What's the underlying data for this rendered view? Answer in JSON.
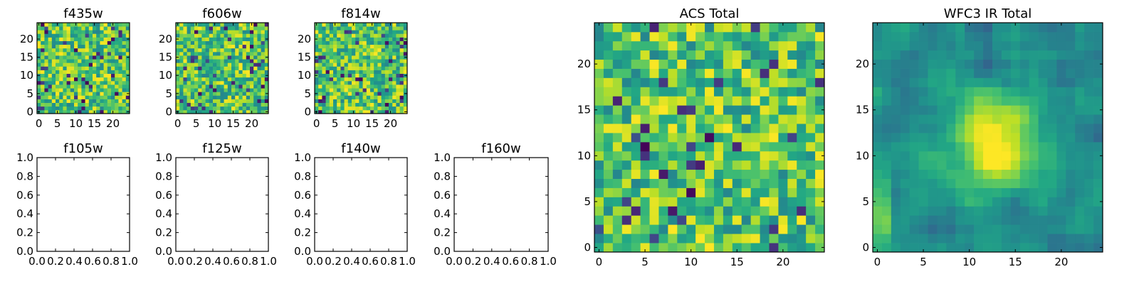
{
  "chart_data": [
    {
      "type": "heatmap",
      "title": "f435w",
      "xlim": [
        -0.5,
        24.5
      ],
      "ylim": [
        -0.5,
        24.5
      ],
      "x_ticks": [
        0,
        5,
        10,
        15,
        20
      ],
      "y_ticks": [
        0,
        5,
        10,
        15,
        20
      ],
      "grid_size": [
        25,
        25
      ],
      "colormap": "viridis",
      "seed": 11
    },
    {
      "type": "heatmap",
      "title": "f606w",
      "xlim": [
        -0.5,
        24.5
      ],
      "ylim": [
        -0.5,
        24.5
      ],
      "x_ticks": [
        0,
        5,
        10,
        15,
        20
      ],
      "y_ticks": [
        0,
        5,
        10,
        15,
        20
      ],
      "grid_size": [
        25,
        25
      ],
      "colormap": "viridis",
      "seed": 23
    },
    {
      "type": "heatmap",
      "title": "f814w",
      "xlim": [
        -0.5,
        24.5
      ],
      "ylim": [
        -0.5,
        24.5
      ],
      "x_ticks": [
        0,
        5,
        10,
        15,
        20
      ],
      "y_ticks": [
        0,
        5,
        10,
        15,
        20
      ],
      "grid_size": [
        25,
        25
      ],
      "colormap": "viridis",
      "seed": 37
    },
    {
      "type": "line",
      "title": "f105w",
      "xlim": [
        0,
        1
      ],
      "ylim": [
        0,
        1
      ],
      "x_ticks": [
        "0.0",
        "0.2",
        "0.4",
        "0.6",
        "0.8",
        "1.0"
      ],
      "y_ticks": [
        "0.0",
        "0.2",
        "0.4",
        "0.6",
        "0.8",
        "1.0"
      ],
      "series": []
    },
    {
      "type": "line",
      "title": "f125w",
      "xlim": [
        0,
        1
      ],
      "ylim": [
        0,
        1
      ],
      "x_ticks": [
        "0.0",
        "0.2",
        "0.4",
        "0.6",
        "0.8",
        "1.0"
      ],
      "y_ticks": [
        "0.0",
        "0.2",
        "0.4",
        "0.6",
        "0.8",
        "1.0"
      ],
      "series": []
    },
    {
      "type": "line",
      "title": "f140w",
      "xlim": [
        0,
        1
      ],
      "ylim": [
        0,
        1
      ],
      "x_ticks": [
        "0.0",
        "0.2",
        "0.4",
        "0.6",
        "0.8",
        "1.0"
      ],
      "y_ticks": [
        "0.0",
        "0.2",
        "0.4",
        "0.6",
        "0.8",
        "1.0"
      ],
      "series": []
    },
    {
      "type": "line",
      "title": "f160w",
      "xlim": [
        0,
        1
      ],
      "ylim": [
        0,
        1
      ],
      "x_ticks": [
        "0.0",
        "0.2",
        "0.4",
        "0.6",
        "0.8",
        "1.0"
      ],
      "y_ticks": [
        "0.0",
        "0.2",
        "0.4",
        "0.6",
        "0.8",
        "1.0"
      ],
      "series": []
    },
    {
      "type": "heatmap",
      "title": "ACS Total",
      "xlim": [
        -0.5,
        24.5
      ],
      "ylim": [
        -0.5,
        24.5
      ],
      "x_ticks": [
        0,
        5,
        10,
        15,
        20
      ],
      "y_ticks": [
        0,
        5,
        10,
        15,
        20
      ],
      "grid_size": [
        25,
        25
      ],
      "colormap": "viridis",
      "seed": 51
    },
    {
      "type": "heatmap",
      "title": "WFC3 IR Total",
      "xlim": [
        -0.5,
        24.5
      ],
      "ylim": [
        -0.5,
        24.5
      ],
      "x_ticks": [
        0,
        5,
        10,
        15,
        20
      ],
      "y_ticks": [
        0,
        5,
        10,
        15,
        20
      ],
      "grid_size": [
        25,
        25
      ],
      "colormap": "viridis",
      "seed": 73,
      "smooth_source": true
    }
  ]
}
